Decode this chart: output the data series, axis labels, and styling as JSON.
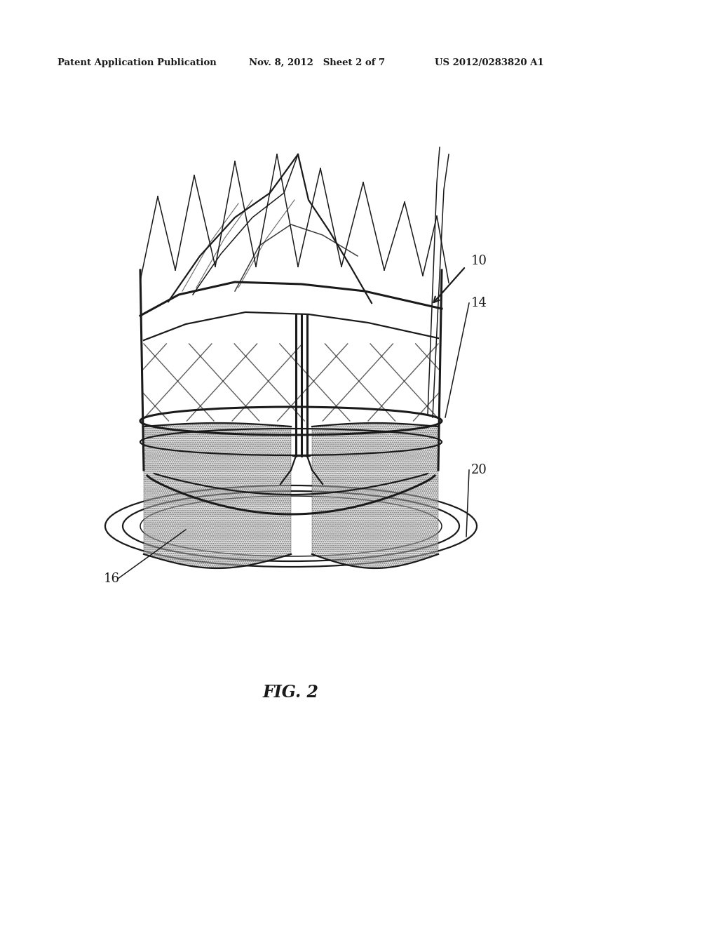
{
  "header_left": "Patent Application Publication",
  "header_mid": "Nov. 8, 2012   Sheet 2 of 7",
  "header_right": "US 2012/0283820 A1",
  "fig_label": "FIG. 2",
  "label_10": "10",
  "label_14": "14",
  "label_16": "16",
  "label_20": "20",
  "bg_color": "#ffffff",
  "line_color": "#1a1a1a",
  "fig_width": 10.24,
  "fig_height": 13.2,
  "dpi": 100
}
